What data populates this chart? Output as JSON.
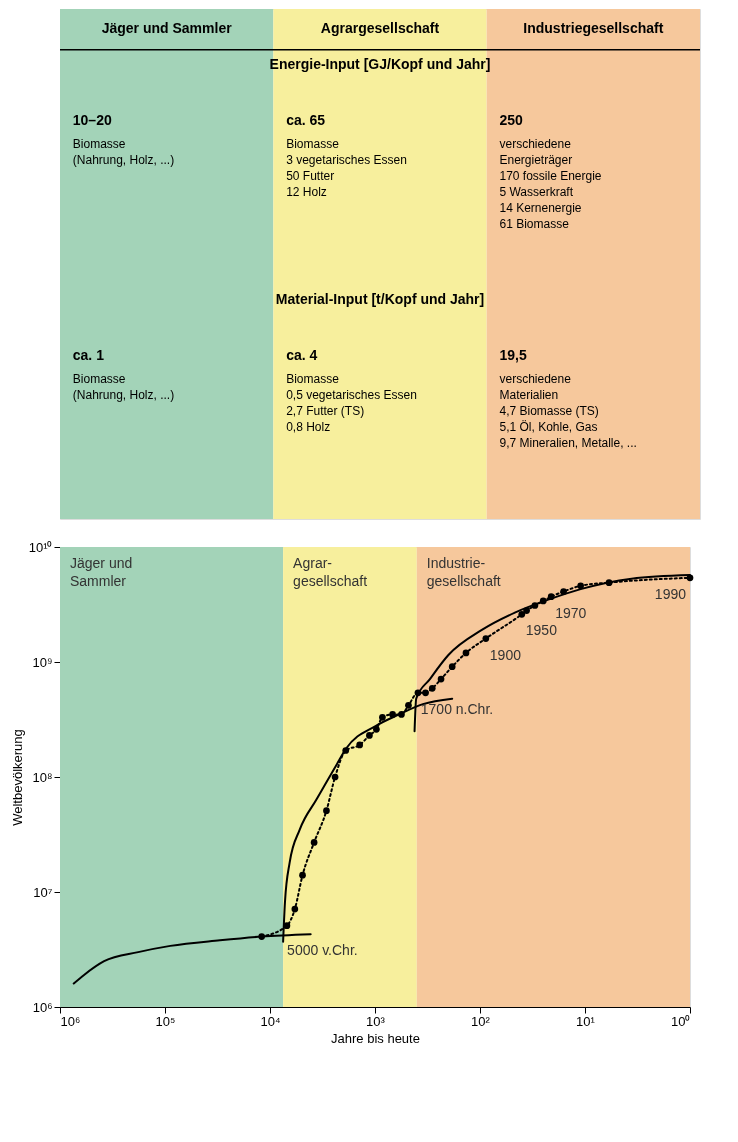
{
  "chart_data": [
    {
      "type": "other",
      "categories": [
        "Jäger und Sammler",
        "Agrargesellschaft",
        "Industriegesellschaft"
      ],
      "colors": [
        "#a3d3b8",
        "#f7ef9d",
        "#f6c89c"
      ],
      "annotations": [
        "Energie-Input [GJ/Kopf und Jahr]",
        "10–20\nBiomasse\n\n(Nahrung, Holz, ...)",
        "ca. 65\nBiomasse\n\n3 vegetarisches Essen\n50 Futter\n12 Holz",
        "250\nverschiedene\nEnergieträger\n\n170 fossile Energie\n5 Wasserkraft\n14 Kernenergie\n61 Biomasse",
        "Material-Input [t/Kopf und Jahr]",
        "ca. 1\nBiomasse\n\n(Nahrung, Holz, ...)",
        "ca. 4\nBiomasse\n\n0,5 vegetarisches Essen\n2,7 Futter (TS)\n0,8 Holz",
        "19,5\nverschiedene\nMaterialien\n\n4,7 Biomasse (TS)\n5,1 Öl, Kohle, Gas\n9,7 Mineralien, Metalle, ..."
      ]
    },
    {
      "type": "line",
      "xlabel": "Jahre bis heute",
      "ylabel": "Weltbevölkerung",
      "log": "xy",
      "grid": false,
      "xlim": [
        1000000,
        1
      ],
      "ylim": [
        1000000,
        10000000000
      ],
      "xticks": [
        {
          "value": 1000000,
          "label": "10⁶"
        },
        {
          "value": 100000,
          "label": "10⁵"
        },
        {
          "value": 10000,
          "label": "10⁴"
        },
        {
          "value": 1000,
          "label": "10³"
        },
        {
          "value": 100,
          "label": "10²"
        },
        {
          "value": 10,
          "label": "10¹"
        },
        {
          "value": 1,
          "label": "10⁰"
        }
      ],
      "yticks": [
        {
          "value": 1000000,
          "label": "10⁶"
        },
        {
          "value": 10000000,
          "label": "10⁷"
        },
        {
          "value": 100000000,
          "label": "10⁸"
        },
        {
          "value": 1000000000,
          "label": "10⁹"
        },
        {
          "value": 10000000000,
          "label": "10¹⁰"
        }
      ],
      "bands": [
        {
          "axis": "x",
          "from": 1000000,
          "to": 7500,
          "label": "Jäger und\nSammler",
          "color": "#a3d3b8"
        },
        {
          "axis": "x",
          "from": 7500,
          "to": 400,
          "label": "Agrar-\ngesellschaft",
          "color": "#f7ef9d"
        },
        {
          "axis": "x",
          "from": 400,
          "to": 1,
          "label": "Industrie-\ngesellschaft",
          "color": "#f6c89c"
        }
      ],
      "series": [
        {
          "type": "line",
          "color": "#000000",
          "marker": "none",
          "line_style": "solid",
          "x": [
            740000,
            590000,
            380000,
            180000,
            89000,
            30000,
            12000,
            4100
          ],
          "values": [
            1600000,
            1900000,
            2500000,
            3000000,
            3400000,
            3800000,
            4100000,
            4300000
          ]
        },
        {
          "type": "line",
          "color": "#000000",
          "marker": "none",
          "line_style": "solid",
          "x": [
            7500,
            7200,
            6500,
            5200,
            3600,
            2300,
            1900,
            970,
            590,
            350,
            184
          ],
          "values": [
            3700000,
            8200000,
            18000000,
            35000000,
            64000000,
            130000000,
            175000000,
            280000000,
            350000000,
            430000000,
            480000000
          ]
        },
        {
          "type": "line",
          "color": "#000000",
          "marker": "none",
          "line_style": "solid",
          "x": [
            420,
            405,
            300,
            200,
            96,
            46,
            22,
            11,
            3.6,
            1
          ],
          "values": [
            250000000,
            480000000,
            710000000,
            1150000000,
            1900000000,
            2700000000,
            3500000000,
            4300000000,
            5300000000,
            5700000000
          ]
        },
        {
          "type": "line",
          "color": "#000000",
          "marker": "circle",
          "line_style": "dotted",
          "x": [
            12000,
            6900,
            5800,
            4900,
            3800,
            2900,
            2400,
            1900,
            1400,
            1130,
            970,
            850,
            680,
            560,
            480,
            390,
            330,
            285,
            235,
            184,
            136,
            88,
            40,
            36,
            30,
            25,
            21,
            16,
            11,
            5.9,
            1
          ],
          "values": [
            4100000,
            5100000,
            7100000,
            14000000,
            27000000,
            51000000,
            100000000,
            170000000,
            190000000,
            230000000,
            260000000,
            330000000,
            350000000,
            350000000,
            420000000,
            540000000,
            540000000,
            590000000,
            710000000,
            910000000,
            1200000000,
            1600000000,
            2600000000,
            2800000000,
            3100000000,
            3400000000,
            3700000000,
            4100000000,
            4600000000,
            4900000000,
            5400000000
          ]
        }
      ],
      "annotations": [
        {
          "text": "5000 v.Chr.",
          "x": 7500,
          "y": 4300000
        },
        {
          "text": "1700 n.Chr.",
          "x": 400,
          "y": 540000000
        },
        {
          "text": "1900",
          "x": 88,
          "y": 1600000000
        },
        {
          "text": "1950",
          "x": 40,
          "y": 2600000000
        },
        {
          "text": "1970",
          "x": 21,
          "y": 3700000000
        },
        {
          "text": "1990",
          "x": 1,
          "y": 5400000000
        }
      ]
    }
  ]
}
